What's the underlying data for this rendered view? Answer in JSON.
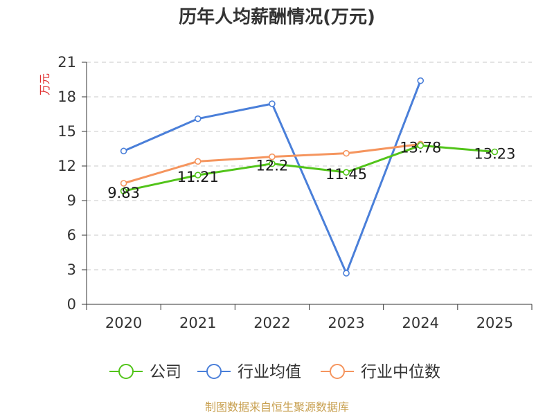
{
  "chart_data": {
    "type": "line",
    "title": "历年人均薪酬情况(万元)",
    "xlabel": "",
    "ylabel": "万元",
    "categories": [
      "2020",
      "2021",
      "2022",
      "2023",
      "2024",
      "2025"
    ],
    "ylim": [
      0,
      21
    ],
    "yticks": [
      0,
      3,
      6,
      9,
      12,
      15,
      18,
      21
    ],
    "grid": true,
    "legend_position": "bottom",
    "series": [
      {
        "name": "公司",
        "color": "#52c41a",
        "values": [
          9.83,
          11.21,
          12.2,
          11.45,
          13.78,
          13.23
        ],
        "labels": [
          "9.83",
          "11.21",
          "12.2",
          "11.45",
          "13.78",
          "13.23"
        ]
      },
      {
        "name": "行业均值",
        "color": "#4a7fd9",
        "values": [
          13.3,
          16.1,
          17.4,
          2.7,
          19.4,
          null
        ]
      },
      {
        "name": "行业中位数",
        "color": "#f5955e",
        "values": [
          10.5,
          12.4,
          12.8,
          13.1,
          13.9,
          null
        ]
      }
    ]
  },
  "colors": {
    "ylabel": "#e03030",
    "source": "#c8a050",
    "grid": "#c8c8c8",
    "axis": "#333333"
  },
  "source": "制图数据来自恒生聚源数据库"
}
